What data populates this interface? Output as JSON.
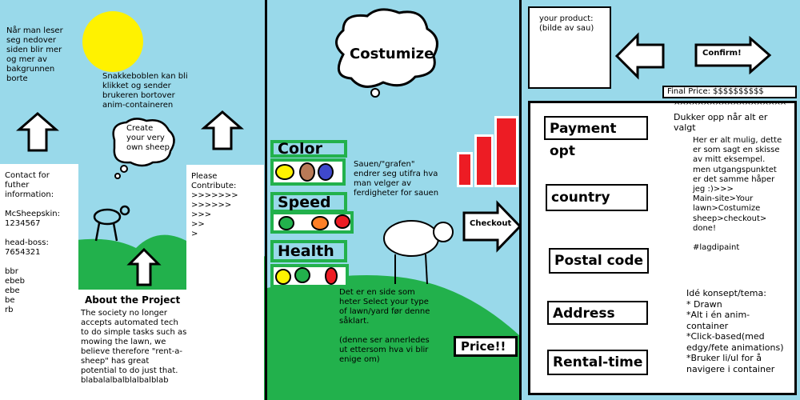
{
  "panel1": {
    "scroll_note": "Når man leser\nseg nedover\nsiden blir mer\nog mer av\nbakgrunnen\nborte",
    "bubble_note": "Snakkeboblen kan bli\nklikket og sender\nbrukeren bortover\nanim-containeren",
    "bubble_text": "Create\nyour very\nown sheep",
    "contact": "Contact for\nfuther\ninformation:\n\nMcSheepskin:\n1234567\n\nhead-boss:\n7654321\n\nbbr\nebeb\nebe\nbe\nrb",
    "about_title": "About the Project",
    "about_body": "The society no longer\naccepts automated tech\nto do simple tasks such as\nmowing the lawn, we\nbelieve therefore \"rent-a-\nsheep\" has great\npotential to do just that.\nblabalalbalblalbalblab",
    "contribute": "Please\nContribute:\n>>>>>>>\n>>>>>>\n>>>\n>>\n>"
  },
  "panel2": {
    "cloud_title": "Costumize",
    "color_label": "Color",
    "speed_label": "Speed",
    "health_label": "Health",
    "graph_note": "Sauen/\"grafen\"\nendrer seg utifra hva\nman velger av\nferdigheter for sauen",
    "checkout_label": "Checkout",
    "select_note": "Det er en side som\nheter Select your type\nof lawn/yard før denne\nsåklart.\n\n(denne ser annerledes\nut ettersom hva vi blir\nenige om)",
    "price_label": "Price!!"
  },
  "panel3": {
    "product_label": "your product:\n(bilde av sau)",
    "confirm_label": "Confirm!",
    "final_price": "Final Price: $$$$$$$$$$",
    "carets": "^^^^^^^^^^^^^^^^^^^",
    "fields": [
      "Payment opt",
      "country",
      "Postal code",
      "Address",
      "Rental-time"
    ],
    "dropdown_note": "Dukker opp når alt er\nvalgt",
    "sketch_note": "Her er alt mulig, dette\ner som sagt en skisse\nav mitt eksempel.\nmen utgangspunktet\ner det samme håper\njeg :)>>>\nMain-site>Your\nlawn>Costumize\nsheep>checkout>\ndone!\n\n#lagdipaint",
    "concept_note": "Idé konsept/tema:\n* Drawn\n*Alt i én anim-\ncontainer\n*Click-based(med\nedgy/fete animations)\n*Bruker li/ul for å\nnavigere i container"
  },
  "colors": {
    "sky": "#99d9ea",
    "grass": "#22b14c",
    "sun": "#fff200",
    "bar_red": "#ed1c24",
    "dot_yellow": "#fff200",
    "dot_brown": "#b97a57",
    "dot_blue": "#3f48cc",
    "dot_green": "#22b14c",
    "dot_orange": "#ff7f27",
    "dot_red": "#ed1c24"
  }
}
